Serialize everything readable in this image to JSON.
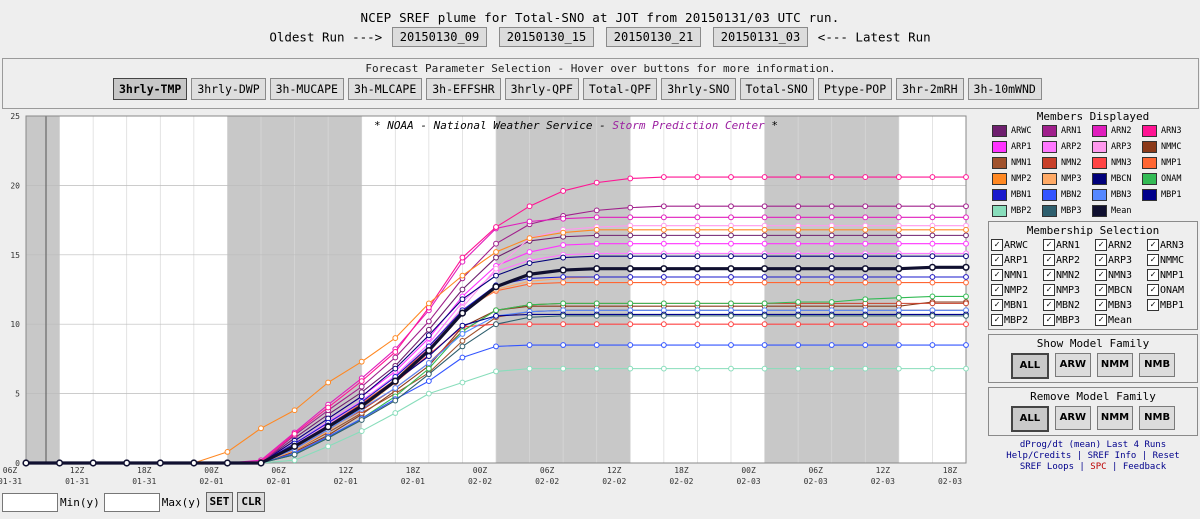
{
  "page": {
    "title": "NCEP SREF plume for Total-SNO at JOT from 20150131/03 UTC run.",
    "oldest_label": "Oldest Run --->",
    "latest_label": "<--- Latest Run",
    "runs": [
      "20150130_09",
      "20150130_15",
      "20150130_21",
      "20150131_03"
    ]
  },
  "params": {
    "title": "Forecast Parameter Selection - Hover over buttons for more information.",
    "buttons": [
      "3hrly-TMP",
      "3hrly-DWP",
      "3h-MUCAPE",
      "3h-MLCAPE",
      "3h-EFFSHR",
      "3hrly-QPF",
      "Total-QPF",
      "3hrly-SNO",
      "Total-SNO",
      "Ptype-POP",
      "3hr-2mRH",
      "3h-10mWND"
    ],
    "selected": "3hrly-TMP"
  },
  "members": {
    "header": "Members Displayed",
    "items": [
      {
        "name": "ARWC",
        "color": "#6e1f6e"
      },
      {
        "name": "ARN1",
        "color": "#a0208c"
      },
      {
        "name": "ARN2",
        "color": "#e01ebd"
      },
      {
        "name": "ARN3",
        "color": "#ff1493"
      },
      {
        "name": "ARP1",
        "color": "#ff33ff"
      },
      {
        "name": "ARP2",
        "color": "#ff77ff"
      },
      {
        "name": "ARP3",
        "color": "#ff99ee"
      },
      {
        "name": "NMMC",
        "color": "#8b3a1a"
      },
      {
        "name": "NMN1",
        "color": "#a0522d"
      },
      {
        "name": "NMN2",
        "color": "#c8402a"
      },
      {
        "name": "NMN3",
        "color": "#ff4444"
      },
      {
        "name": "NMP1",
        "color": "#ff6633"
      },
      {
        "name": "NMP2",
        "color": "#ff8822"
      },
      {
        "name": "NMP3",
        "color": "#ffaa66"
      },
      {
        "name": "MBCN",
        "color": "#00007a"
      },
      {
        "name": "ONAM",
        "color": "#33bb55"
      },
      {
        "name": "MBN1",
        "color": "#1a1acc"
      },
      {
        "name": "MBN2",
        "color": "#3355ff"
      },
      {
        "name": "MBN3",
        "color": "#5588ff"
      },
      {
        "name": "MBP1",
        "color": "#00008b"
      },
      {
        "name": "MBP2",
        "color": "#88ddbb"
      },
      {
        "name": "MBP3",
        "color": "#2e5f6e"
      },
      {
        "name": "Mean",
        "color": "#101030"
      }
    ]
  },
  "selection": {
    "header": "Membership Selection",
    "labels": [
      "ARWC",
      "ARN1",
      "ARN2",
      "ARN3",
      "ARP1",
      "ARP2",
      "ARP3",
      "NMMC",
      "NMN1",
      "NMN2",
      "NMN3",
      "NMP1",
      "NMP2",
      "NMP3",
      "MBCN",
      "ONAM",
      "MBN1",
      "MBN2",
      "MBN3",
      "MBP1",
      "MBP2",
      "MBP3",
      "Mean"
    ]
  },
  "show_family": {
    "header": "Show Model Family",
    "buttons": [
      "ALL",
      "ARW",
      "NMM",
      "NMB"
    ]
  },
  "remove_family": {
    "header": "Remove Model Family",
    "buttons": [
      "ALL",
      "ARW",
      "NMM",
      "NMB"
    ]
  },
  "links": {
    "line1": "dProg/dt (mean) Last 4 Runs",
    "line2a": "Help/Credits",
    "line2b": "SREF Info",
    "line2c": "Reset",
    "line3a": "SREF Loops",
    "line3b": "SPC",
    "line3c": "Feedback"
  },
  "bottom": {
    "min_label": "Min(y)",
    "max_label": "Max(y)",
    "set": "SET",
    "clr": "CLR"
  },
  "chart_data": {
    "type": "line",
    "title": "* NOAA - National Weather Service - Storm Prediction Center *",
    "ylim": [
      0,
      25
    ],
    "yticks": [
      0,
      5,
      10,
      15,
      20,
      25
    ],
    "grid": true,
    "x_ticks": [
      {
        "index": 0,
        "hour": "06Z",
        "date": "01-31"
      },
      {
        "index": 2,
        "hour": "12Z",
        "date": "01-31"
      },
      {
        "index": 4,
        "hour": "18Z",
        "date": "01-31"
      },
      {
        "index": 6,
        "hour": "00Z",
        "date": "02-01"
      },
      {
        "index": 8,
        "hour": "06Z",
        "date": "02-01"
      },
      {
        "index": 10,
        "hour": "12Z",
        "date": "02-01"
      },
      {
        "index": 12,
        "hour": "18Z",
        "date": "02-01"
      },
      {
        "index": 14,
        "hour": "00Z",
        "date": "02-02"
      },
      {
        "index": 16,
        "hour": "06Z",
        "date": "02-02"
      },
      {
        "index": 18,
        "hour": "12Z",
        "date": "02-02"
      },
      {
        "index": 20,
        "hour": "18Z",
        "date": "02-02"
      },
      {
        "index": 22,
        "hour": "00Z",
        "date": "02-03"
      },
      {
        "index": 24,
        "hour": "06Z",
        "date": "02-03"
      },
      {
        "index": 26,
        "hour": "12Z",
        "date": "02-03"
      },
      {
        "index": 28,
        "hour": "18Z",
        "date": "02-03"
      }
    ],
    "night_bands": [
      [
        -0.6,
        1
      ],
      [
        6,
        10
      ],
      [
        14,
        18
      ],
      [
        22,
        26
      ]
    ],
    "series": [
      {
        "name": "ARWC",
        "color": "#6e1f6e",
        "values": [
          0,
          0,
          0,
          0,
          0,
          0,
          0,
          0,
          1.8,
          3.5,
          5.1,
          7.0,
          9.6,
          12.5,
          14.8,
          16.0,
          16.3,
          16.4,
          16.4,
          16.4,
          16.4,
          16.4,
          16.4,
          16.4,
          16.4,
          16.4,
          16.4,
          16.4,
          16.4
        ]
      },
      {
        "name": "ARN1",
        "color": "#a0208c",
        "values": [
          0,
          0,
          0,
          0,
          0,
          0,
          0,
          0,
          2.0,
          3.8,
          5.5,
          7.6,
          10.2,
          13.3,
          15.8,
          17.2,
          17.8,
          18.2,
          18.4,
          18.5,
          18.5,
          18.5,
          18.5,
          18.5,
          18.5,
          18.5,
          18.5,
          18.5,
          18.5
        ]
      },
      {
        "name": "ARN2",
        "color": "#e01ebd",
        "values": [
          0,
          0,
          0,
          0,
          0,
          0,
          0,
          0.2,
          2.2,
          4.2,
          6.1,
          8.2,
          11.0,
          14.5,
          16.9,
          17.4,
          17.6,
          17.7,
          17.7,
          17.7,
          17.7,
          17.7,
          17.7,
          17.7,
          17.7,
          17.7,
          17.7,
          17.7,
          17.7
        ]
      },
      {
        "name": "ARN3",
        "color": "#ff1493",
        "values": [
          0,
          0,
          0,
          0,
          0,
          0,
          0,
          0.1,
          2.1,
          4.0,
          5.9,
          8.0,
          11.2,
          14.8,
          17.0,
          18.5,
          19.6,
          20.2,
          20.5,
          20.6,
          20.6,
          20.6,
          20.6,
          20.6,
          20.6,
          20.6,
          20.6,
          20.6,
          20.6
        ]
      },
      {
        "name": "ARP1",
        "color": "#ff33ff",
        "values": [
          0,
          0,
          0,
          0,
          0,
          0,
          0,
          0,
          1.6,
          3.2,
          4.8,
          6.6,
          9.0,
          12.0,
          14.2,
          15.2,
          15.7,
          15.8,
          15.8,
          15.8,
          15.8,
          15.8,
          15.8,
          15.8,
          15.8,
          15.8,
          15.8,
          15.8,
          15.8
        ]
      },
      {
        "name": "ARP2",
        "color": "#ff77ff",
        "values": [
          0,
          0,
          0,
          0,
          0,
          0,
          0,
          0,
          1.4,
          3.0,
          4.5,
          6.3,
          8.6,
          11.6,
          13.8,
          14.6,
          15.0,
          15.1,
          15.1,
          15.1,
          15.1,
          15.1,
          15.1,
          15.1,
          15.1,
          15.1,
          15.1,
          15.1,
          15.1
        ]
      },
      {
        "name": "ARP3",
        "color": "#ff99ee",
        "values": [
          0,
          0,
          0,
          0,
          0,
          0,
          0,
          0,
          1.3,
          2.8,
          4.3,
          6.0,
          8.3,
          11.2,
          14.0,
          16.2,
          16.8,
          17.0,
          17.1,
          17.1,
          17.1,
          17.1,
          17.1,
          17.1,
          17.1,
          17.1,
          17.1,
          17.1,
          17.1
        ]
      },
      {
        "name": "NMMC",
        "color": "#8b3a1a",
        "values": [
          0,
          0,
          0,
          0,
          0,
          0,
          0,
          0,
          0.8,
          2.0,
          3.5,
          5.2,
          7.0,
          9.8,
          11.0,
          11.3,
          11.3,
          11.3,
          11.3,
          11.3,
          11.3,
          11.3,
          11.3,
          11.3,
          11.3,
          11.3,
          11.3,
          11.6,
          11.6
        ]
      },
      {
        "name": "NMN1",
        "color": "#a0522d",
        "values": [
          0,
          0,
          0,
          0,
          0,
          0,
          0,
          0,
          0.9,
          2.2,
          3.6,
          5.0,
          6.5,
          8.8,
          10.5,
          10.9,
          11.0,
          11.0,
          11.0,
          11.0,
          11.0,
          11.0,
          11.0,
          11.0,
          11.0,
          11.0,
          11.0,
          11.0,
          11.0
        ]
      },
      {
        "name": "NMN2",
        "color": "#c8402a",
        "values": [
          0,
          0,
          0,
          0,
          0,
          0,
          0,
          0,
          1.0,
          2.4,
          3.8,
          5.4,
          7.2,
          9.5,
          11.0,
          11.4,
          11.5,
          11.5,
          11.5,
          11.5,
          11.5,
          11.5,
          11.5,
          11.5,
          11.5,
          11.5,
          11.5,
          11.5,
          11.5
        ]
      },
      {
        "name": "NMN3",
        "color": "#ff4444",
        "values": [
          0,
          0,
          0,
          0,
          0,
          0,
          0,
          0,
          1.1,
          2.6,
          4.2,
          5.8,
          7.8,
          9.8,
          10.0,
          10.0,
          10.0,
          10.0,
          10.0,
          10.0,
          10.0,
          10.0,
          10.0,
          10.0,
          10.0,
          10.0,
          10.0,
          10.0,
          10.0
        ]
      },
      {
        "name": "NMP1",
        "color": "#ff6633",
        "values": [
          0,
          0,
          0,
          0,
          0,
          0,
          0,
          0,
          1.2,
          2.7,
          4.3,
          6.0,
          8.4,
          11.0,
          12.4,
          12.9,
          13.0,
          13.0,
          13.0,
          13.0,
          13.0,
          13.0,
          13.0,
          13.0,
          13.0,
          13.0,
          13.0,
          13.0,
          13.0
        ]
      },
      {
        "name": "NMP2",
        "color": "#ff8822",
        "values": [
          0,
          0,
          0,
          0,
          0,
          0,
          0.8,
          2.5,
          3.8,
          5.8,
          7.3,
          9.0,
          11.5,
          13.5,
          15.2,
          16.2,
          16.6,
          16.8,
          16.8,
          16.8,
          16.8,
          16.8,
          16.8,
          16.8,
          16.8,
          16.8,
          16.8,
          16.8,
          16.8
        ]
      },
      {
        "name": "NMP3",
        "color": "#ffaa66",
        "values": [
          0,
          0,
          0,
          0,
          0,
          0,
          0,
          0,
          0.9,
          2.3,
          3.9,
          5.8,
          8.2,
          10.8,
          12.5,
          13.1,
          13.3,
          13.4,
          13.4,
          13.4,
          13.4,
          13.4,
          13.4,
          13.4,
          13.4,
          13.4,
          13.4,
          13.4,
          13.4
        ]
      },
      {
        "name": "MBCN",
        "color": "#00007a",
        "values": [
          0,
          0,
          0,
          0,
          0,
          0,
          0,
          0,
          1.6,
          3.2,
          4.8,
          6.8,
          9.2,
          11.8,
          13.5,
          14.4,
          14.8,
          14.9,
          14.9,
          14.9,
          14.9,
          14.9,
          14.9,
          14.9,
          14.9,
          14.9,
          14.9,
          14.9,
          14.9
        ]
      },
      {
        "name": "ONAM",
        "color": "#33bb55",
        "values": [
          0,
          0,
          0,
          0,
          0,
          0,
          0,
          0,
          0.6,
          1.8,
          3.2,
          4.8,
          6.8,
          9.5,
          11.0,
          11.4,
          11.5,
          11.5,
          11.5,
          11.5,
          11.5,
          11.5,
          11.5,
          11.6,
          11.6,
          11.8,
          11.9,
          12.0,
          12.0
        ]
      },
      {
        "name": "MBN1",
        "color": "#1a1acc",
        "values": [
          0,
          0,
          0,
          0,
          0,
          0,
          0,
          0,
          1.4,
          2.9,
          4.4,
          6.2,
          8.4,
          11.0,
          12.8,
          13.3,
          13.4,
          13.4,
          13.4,
          13.4,
          13.4,
          13.4,
          13.4,
          13.4,
          13.4,
          13.4,
          13.4,
          13.4,
          13.4
        ]
      },
      {
        "name": "MBN2",
        "color": "#3355ff",
        "values": [
          0,
          0,
          0,
          0,
          0,
          0,
          0,
          0,
          0.7,
          1.9,
          3.2,
          4.6,
          5.9,
          7.6,
          8.4,
          8.5,
          8.5,
          8.5,
          8.5,
          8.5,
          8.5,
          8.5,
          8.5,
          8.5,
          8.5,
          8.5,
          8.5,
          8.5,
          8.5
        ]
      },
      {
        "name": "MBN3",
        "color": "#5588ff",
        "values": [
          0,
          0,
          0,
          0,
          0,
          0,
          0,
          0,
          1.0,
          2.4,
          3.9,
          5.4,
          7.2,
          9.3,
          10.6,
          10.9,
          11.0,
          11.0,
          11.0,
          11.0,
          11.0,
          11.0,
          11.0,
          11.0,
          11.0,
          11.0,
          11.0,
          11.0,
          11.0
        ]
      },
      {
        "name": "MBP1",
        "color": "#00008b",
        "values": [
          0,
          0,
          0,
          0,
          0,
          0,
          0,
          0,
          1.2,
          2.7,
          4.2,
          5.9,
          7.7,
          9.9,
          10.6,
          10.7,
          10.7,
          10.7,
          10.7,
          10.7,
          10.7,
          10.7,
          10.7,
          10.7,
          10.7,
          10.7,
          10.7,
          10.7,
          10.7
        ]
      },
      {
        "name": "MBP2",
        "color": "#88ddbb",
        "values": [
          0,
          0,
          0,
          0,
          0,
          0,
          0,
          0,
          0.2,
          1.2,
          2.3,
          3.6,
          5.0,
          5.8,
          6.6,
          6.8,
          6.8,
          6.8,
          6.8,
          6.8,
          6.8,
          6.8,
          6.8,
          6.8,
          6.8,
          6.8,
          6.8,
          6.8,
          6.8
        ]
      },
      {
        "name": "MBP3",
        "color": "#2e5f6e",
        "values": [
          0,
          0,
          0,
          0,
          0,
          0,
          0,
          0,
          0.6,
          1.8,
          3.1,
          4.5,
          6.4,
          8.4,
          10.0,
          10.5,
          10.6,
          10.6,
          10.6,
          10.6,
          10.6,
          10.6,
          10.6,
          10.6,
          10.6,
          10.6,
          10.6,
          10.6,
          10.6
        ]
      },
      {
        "name": "Mean",
        "color": "#101030",
        "values": [
          0,
          0,
          0,
          0,
          0,
          0,
          0,
          0,
          1.2,
          2.6,
          4.1,
          5.9,
          8.1,
          10.8,
          12.7,
          13.6,
          13.9,
          14.0,
          14.0,
          14.0,
          14.0,
          14.0,
          14.0,
          14.0,
          14.0,
          14.0,
          14.0,
          14.1,
          14.1
        ]
      }
    ]
  }
}
